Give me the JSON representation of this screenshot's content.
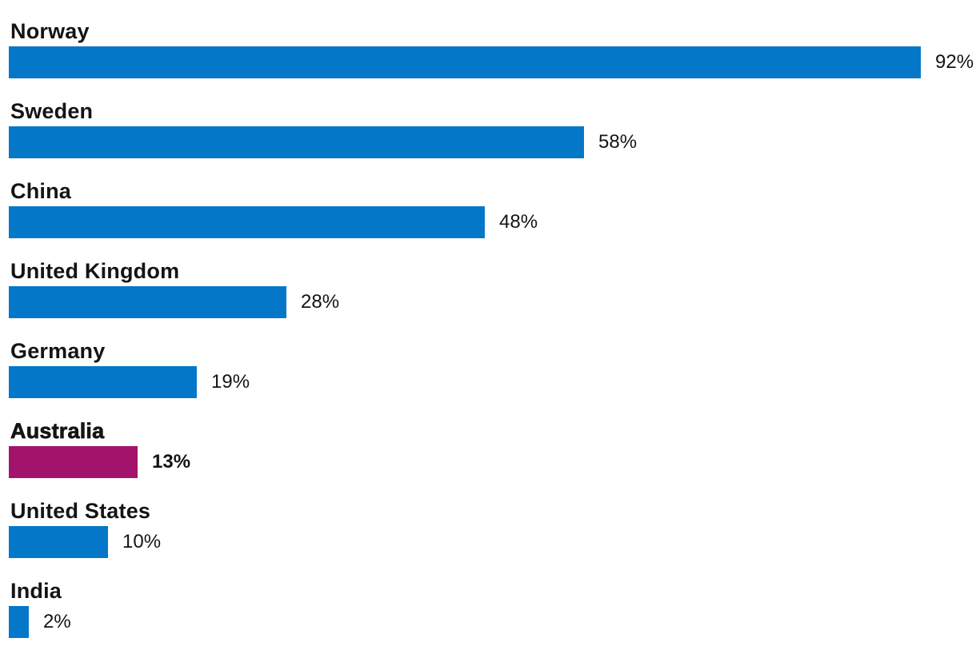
{
  "chart_data": {
    "type": "bar",
    "orientation": "horizontal",
    "categories": [
      "Norway",
      "Sweden",
      "China",
      "United Kingdom",
      "Germany",
      "Australia",
      "United States",
      "India"
    ],
    "values": [
      92,
      58,
      48,
      28,
      19,
      13,
      10,
      2
    ],
    "value_labels": [
      "92%",
      "58%",
      "48%",
      "28%",
      "19%",
      "13%",
      "10%",
      "2%"
    ],
    "highlight_category": "Australia",
    "xlim": [
      0,
      100
    ],
    "grid": "off",
    "legend": "none",
    "axes_visible": false,
    "colors": {
      "bar": "#0577C8",
      "highlight": "#A4136B",
      "text": "#141414",
      "background": "#FFFFFF"
    }
  }
}
